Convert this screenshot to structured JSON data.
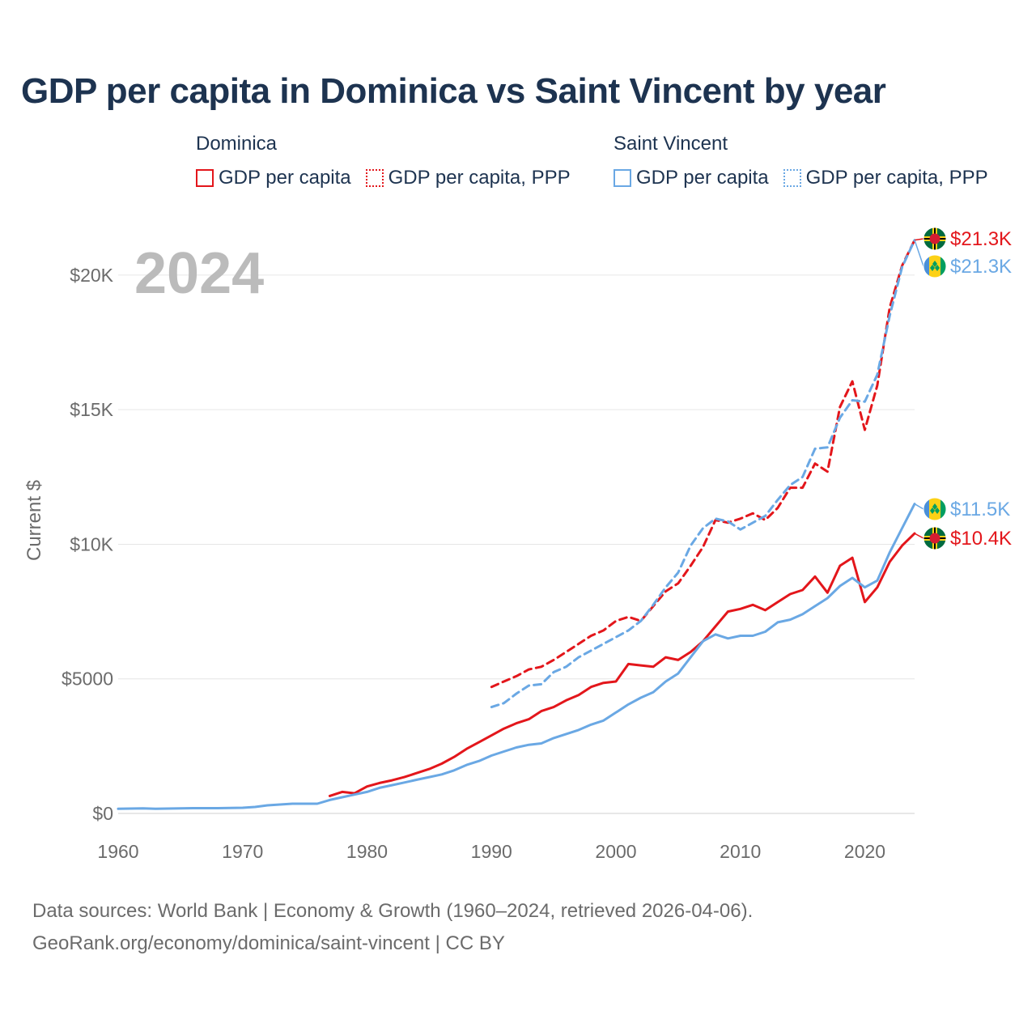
{
  "title": "GDP per capita in Dominica vs Saint Vincent by year",
  "legend": {
    "groups": [
      {
        "name": "Dominica",
        "color": "#e3161b",
        "items": [
          {
            "label": "GDP per capita",
            "style": "solid"
          },
          {
            "label": "GDP per capita, PPP",
            "style": "dashed"
          }
        ]
      },
      {
        "name": "Saint Vincent",
        "color": "#6aa8e4",
        "items": [
          {
            "label": "GDP per capita",
            "style": "solid"
          },
          {
            "label": "GDP per capita, PPP",
            "style": "dashed"
          }
        ]
      }
    ]
  },
  "chart_data": {
    "type": "line",
    "title": "GDP per capita in Dominica vs Saint Vincent by year",
    "year_watermark": "2024",
    "ylabel": "Current $",
    "xlabel": "",
    "xlim": [
      1960,
      2024
    ],
    "ylim": [
      0,
      21500
    ],
    "x_ticks": [
      1960,
      1970,
      1980,
      1990,
      2000,
      2010,
      2020
    ],
    "y_ticks": [
      {
        "value": 0,
        "label": "$0"
      },
      {
        "value": 5000,
        "label": "$5000"
      },
      {
        "value": 10000,
        "label": "$10K"
      },
      {
        "value": 15000,
        "label": "$15K"
      },
      {
        "value": 20000,
        "label": "$20K"
      }
    ],
    "grid": true,
    "series": [
      {
        "name": "Dominica GDP per capita",
        "country": "Dominica",
        "color": "#e3161b",
        "dash": false,
        "end_label": "$10.4K",
        "points": [
          [
            1977,
            650
          ],
          [
            1978,
            800
          ],
          [
            1979,
            750
          ],
          [
            1980,
            1000
          ],
          [
            1981,
            1130
          ],
          [
            1982,
            1230
          ],
          [
            1983,
            1350
          ],
          [
            1984,
            1500
          ],
          [
            1985,
            1650
          ],
          [
            1986,
            1850
          ],
          [
            1987,
            2100
          ],
          [
            1988,
            2400
          ],
          [
            1989,
            2650
          ],
          [
            1990,
            2900
          ],
          [
            1991,
            3150
          ],
          [
            1992,
            3350
          ],
          [
            1993,
            3500
          ],
          [
            1994,
            3800
          ],
          [
            1995,
            3950
          ],
          [
            1996,
            4200
          ],
          [
            1997,
            4400
          ],
          [
            1998,
            4700
          ],
          [
            1999,
            4850
          ],
          [
            2000,
            4900
          ],
          [
            2001,
            5550
          ],
          [
            2002,
            5500
          ],
          [
            2003,
            5450
          ],
          [
            2004,
            5800
          ],
          [
            2005,
            5700
          ],
          [
            2006,
            6000
          ],
          [
            2007,
            6400
          ],
          [
            2008,
            6950
          ],
          [
            2009,
            7500
          ],
          [
            2010,
            7600
          ],
          [
            2011,
            7750
          ],
          [
            2012,
            7550
          ],
          [
            2013,
            7850
          ],
          [
            2014,
            8150
          ],
          [
            2015,
            8300
          ],
          [
            2016,
            8800
          ],
          [
            2017,
            8200
          ],
          [
            2018,
            9200
          ],
          [
            2019,
            9500
          ],
          [
            2020,
            7850
          ],
          [
            2021,
            8400
          ],
          [
            2022,
            9350
          ],
          [
            2023,
            9950
          ],
          [
            2024,
            10400
          ]
        ]
      },
      {
        "name": "Dominica GDP per capita, PPP",
        "country": "Dominica",
        "color": "#e3161b",
        "dash": true,
        "end_label": "$21.3K",
        "points": [
          [
            1990,
            4700
          ],
          [
            1991,
            4900
          ],
          [
            1992,
            5100
          ],
          [
            1993,
            5350
          ],
          [
            1994,
            5450
          ],
          [
            1995,
            5700
          ],
          [
            1996,
            6000
          ],
          [
            1997,
            6300
          ],
          [
            1998,
            6600
          ],
          [
            1999,
            6800
          ],
          [
            2000,
            7150
          ],
          [
            2001,
            7300
          ],
          [
            2002,
            7150
          ],
          [
            2003,
            7700
          ],
          [
            2004,
            8250
          ],
          [
            2005,
            8550
          ],
          [
            2006,
            9200
          ],
          [
            2007,
            9900
          ],
          [
            2008,
            10900
          ],
          [
            2009,
            10800
          ],
          [
            2010,
            10950
          ],
          [
            2011,
            11150
          ],
          [
            2012,
            10900
          ],
          [
            2013,
            11350
          ],
          [
            2014,
            12100
          ],
          [
            2015,
            12100
          ],
          [
            2016,
            13000
          ],
          [
            2017,
            12700
          ],
          [
            2018,
            15100
          ],
          [
            2019,
            16050
          ],
          [
            2020,
            14250
          ],
          [
            2021,
            15900
          ],
          [
            2022,
            18800
          ],
          [
            2023,
            20350
          ],
          [
            2024,
            21300
          ]
        ]
      },
      {
        "name": "Saint Vincent GDP per capita",
        "country": "Saint Vincent",
        "color": "#6aa8e4",
        "dash": false,
        "end_label": "$11.5K",
        "points": [
          [
            1960,
            170
          ],
          [
            1961,
            180
          ],
          [
            1962,
            185
          ],
          [
            1963,
            175
          ],
          [
            1964,
            180
          ],
          [
            1965,
            190
          ],
          [
            1966,
            195
          ],
          [
            1967,
            195
          ],
          [
            1968,
            195
          ],
          [
            1969,
            200
          ],
          [
            1970,
            210
          ],
          [
            1971,
            240
          ],
          [
            1972,
            300
          ],
          [
            1973,
            330
          ],
          [
            1974,
            360
          ],
          [
            1975,
            360
          ],
          [
            1976,
            360
          ],
          [
            1977,
            500
          ],
          [
            1978,
            600
          ],
          [
            1979,
            700
          ],
          [
            1980,
            800
          ],
          [
            1981,
            950
          ],
          [
            1982,
            1050
          ],
          [
            1983,
            1150
          ],
          [
            1984,
            1250
          ],
          [
            1985,
            1350
          ],
          [
            1986,
            1450
          ],
          [
            1987,
            1600
          ],
          [
            1988,
            1800
          ],
          [
            1989,
            1950
          ],
          [
            1990,
            2150
          ],
          [
            1991,
            2300
          ],
          [
            1992,
            2450
          ],
          [
            1993,
            2550
          ],
          [
            1994,
            2600
          ],
          [
            1995,
            2800
          ],
          [
            1996,
            2950
          ],
          [
            1997,
            3100
          ],
          [
            1998,
            3300
          ],
          [
            1999,
            3450
          ],
          [
            2000,
            3750
          ],
          [
            2001,
            4050
          ],
          [
            2002,
            4300
          ],
          [
            2003,
            4500
          ],
          [
            2004,
            4900
          ],
          [
            2005,
            5200
          ],
          [
            2006,
            5800
          ],
          [
            2007,
            6400
          ],
          [
            2008,
            6650
          ],
          [
            2009,
            6500
          ],
          [
            2010,
            6600
          ],
          [
            2011,
            6600
          ],
          [
            2012,
            6750
          ],
          [
            2013,
            7100
          ],
          [
            2014,
            7200
          ],
          [
            2015,
            7400
          ],
          [
            2016,
            7700
          ],
          [
            2017,
            8000
          ],
          [
            2018,
            8450
          ],
          [
            2019,
            8750
          ],
          [
            2020,
            8400
          ],
          [
            2021,
            8650
          ],
          [
            2022,
            9700
          ],
          [
            2023,
            10600
          ],
          [
            2024,
            11500
          ]
        ]
      },
      {
        "name": "Saint Vincent GDP per capita, PPP",
        "country": "Saint Vincent",
        "color": "#6aa8e4",
        "dash": true,
        "end_label": "$21.3K",
        "points": [
          [
            1990,
            3950
          ],
          [
            1991,
            4100
          ],
          [
            1992,
            4450
          ],
          [
            1993,
            4750
          ],
          [
            1994,
            4800
          ],
          [
            1995,
            5250
          ],
          [
            1996,
            5450
          ],
          [
            1997,
            5800
          ],
          [
            1998,
            6050
          ],
          [
            1999,
            6300
          ],
          [
            2000,
            6550
          ],
          [
            2001,
            6800
          ],
          [
            2002,
            7150
          ],
          [
            2003,
            7750
          ],
          [
            2004,
            8400
          ],
          [
            2005,
            8950
          ],
          [
            2006,
            9950
          ],
          [
            2007,
            10600
          ],
          [
            2008,
            10950
          ],
          [
            2009,
            10850
          ],
          [
            2010,
            10550
          ],
          [
            2011,
            10800
          ],
          [
            2012,
            11050
          ],
          [
            2013,
            11650
          ],
          [
            2014,
            12200
          ],
          [
            2015,
            12500
          ],
          [
            2016,
            13550
          ],
          [
            2017,
            13600
          ],
          [
            2018,
            14700
          ],
          [
            2019,
            15350
          ],
          [
            2020,
            15300
          ],
          [
            2021,
            16300
          ],
          [
            2022,
            18500
          ],
          [
            2023,
            20300
          ],
          [
            2024,
            21300
          ]
        ]
      }
    ]
  },
  "footer": {
    "line1": "Data sources: World Bank | Economy & Growth (1960–2024, retrieved 2026-04-06).",
    "line2": "GeoRank.org/economy/dominica/saint-vincent | CC BY"
  }
}
